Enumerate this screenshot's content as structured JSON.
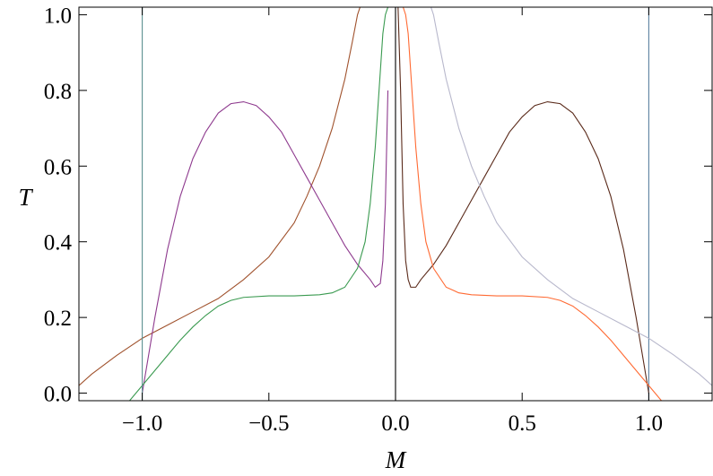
{
  "chart_data": {
    "type": "line",
    "title": "",
    "xlabel": "M",
    "ylabel": "T",
    "xlim": [
      -1.25,
      1.25
    ],
    "ylim": [
      -0.02,
      1.02
    ],
    "x_ticks": [
      -1.0,
      -0.5,
      0.0,
      0.5,
      1.0
    ],
    "x_tick_labels": [
      "−1.0",
      "−0.5",
      "0.0",
      "0.5",
      "1.0"
    ],
    "y_ticks": [
      0.0,
      0.2,
      0.4,
      0.6,
      0.8,
      1.0
    ],
    "y_tick_labels": [
      "0.0",
      "0.2",
      "0.4",
      "0.6",
      "0.8",
      "1.0"
    ],
    "grid": false,
    "legend": "none",
    "series": [
      {
        "color": "#a0522d",
        "x": [
          -1.25,
          -1.2,
          -1.1,
          -1.0,
          -0.9,
          -0.8,
          -0.7,
          -0.6,
          -0.5,
          -0.4,
          -0.35,
          -0.3,
          -0.25,
          -0.2,
          -0.17,
          -0.15,
          -0.14
        ],
        "y": [
          0.02,
          0.05,
          0.1,
          0.145,
          0.18,
          0.215,
          0.25,
          0.3,
          0.36,
          0.45,
          0.52,
          0.6,
          0.7,
          0.83,
          0.93,
          1.0,
          1.02
        ]
      },
      {
        "color": "#8e3a8e",
        "x": [
          -1.0,
          -0.95,
          -0.9,
          -0.85,
          -0.8,
          -0.75,
          -0.7,
          -0.65,
          -0.6,
          -0.55,
          -0.5,
          -0.45,
          -0.4,
          -0.35,
          -0.3,
          -0.25,
          -0.2,
          -0.15,
          -0.1,
          -0.08,
          -0.06,
          -0.05,
          -0.04,
          -0.03
        ],
        "y": [
          0.0,
          0.2,
          0.38,
          0.52,
          0.62,
          0.69,
          0.74,
          0.765,
          0.77,
          0.76,
          0.73,
          0.69,
          0.63,
          0.57,
          0.51,
          0.45,
          0.39,
          0.34,
          0.3,
          0.28,
          0.29,
          0.35,
          0.5,
          0.8
        ]
      },
      {
        "color": "#3a9a50",
        "x": [
          -1.05,
          -1.0,
          -0.95,
          -0.9,
          -0.85,
          -0.8,
          -0.75,
          -0.7,
          -0.65,
          -0.6,
          -0.5,
          -0.4,
          -0.3,
          -0.25,
          -0.2,
          -0.15,
          -0.12,
          -0.1,
          -0.08,
          -0.06,
          -0.05,
          -0.04,
          -0.03
        ],
        "y": [
          -0.02,
          0.02,
          0.06,
          0.1,
          0.14,
          0.175,
          0.205,
          0.23,
          0.245,
          0.253,
          0.257,
          0.257,
          0.26,
          0.265,
          0.28,
          0.33,
          0.4,
          0.5,
          0.65,
          0.85,
          0.95,
          1.0,
          1.02
        ]
      },
      {
        "color": "#5a8f8f",
        "x": [
          -1.0,
          -1.0
        ],
        "y": [
          -0.02,
          1.02
        ]
      },
      {
        "color": "#5a7fa0",
        "x": [
          1.0,
          1.0
        ],
        "y": [
          -0.02,
          1.02
        ]
      },
      {
        "color": "#000000",
        "x": [
          0.0,
          0.0
        ],
        "y": [
          -0.02,
          1.02
        ]
      },
      {
        "color": "#5a2a1a",
        "x": [
          0.01,
          0.02,
          0.03,
          0.04,
          0.05,
          0.06,
          0.08,
          0.1,
          0.15,
          0.2,
          0.25,
          0.3,
          0.35,
          0.4,
          0.45,
          0.5,
          0.55,
          0.6,
          0.65,
          0.7,
          0.75,
          0.8,
          0.85,
          0.9,
          0.95,
          1.0
        ],
        "y": [
          1.02,
          0.8,
          0.5,
          0.35,
          0.3,
          0.28,
          0.28,
          0.3,
          0.34,
          0.39,
          0.45,
          0.51,
          0.57,
          0.63,
          0.69,
          0.73,
          0.76,
          0.77,
          0.765,
          0.74,
          0.69,
          0.62,
          0.52,
          0.38,
          0.2,
          0.0
        ]
      },
      {
        "color": "#ff6a33",
        "x": [
          0.03,
          0.04,
          0.05,
          0.06,
          0.08,
          0.1,
          0.12,
          0.15,
          0.2,
          0.25,
          0.3,
          0.4,
          0.5,
          0.6,
          0.65,
          0.7,
          0.75,
          0.8,
          0.85,
          0.9,
          0.95,
          1.0,
          1.05
        ],
        "y": [
          1.02,
          1.0,
          0.95,
          0.85,
          0.65,
          0.5,
          0.4,
          0.33,
          0.28,
          0.265,
          0.26,
          0.257,
          0.257,
          0.253,
          0.245,
          0.23,
          0.205,
          0.175,
          0.14,
          0.1,
          0.06,
          0.02,
          -0.02
        ]
      },
      {
        "color": "#b8b8cc",
        "x": [
          0.14,
          0.15,
          0.17,
          0.2,
          0.25,
          0.3,
          0.35,
          0.4,
          0.5,
          0.6,
          0.7,
          0.8,
          0.9,
          1.0,
          1.1,
          1.2,
          1.25
        ],
        "y": [
          1.02,
          1.0,
          0.93,
          0.83,
          0.7,
          0.6,
          0.52,
          0.45,
          0.36,
          0.3,
          0.25,
          0.215,
          0.18,
          0.145,
          0.1,
          0.05,
          0.02
        ]
      }
    ]
  }
}
